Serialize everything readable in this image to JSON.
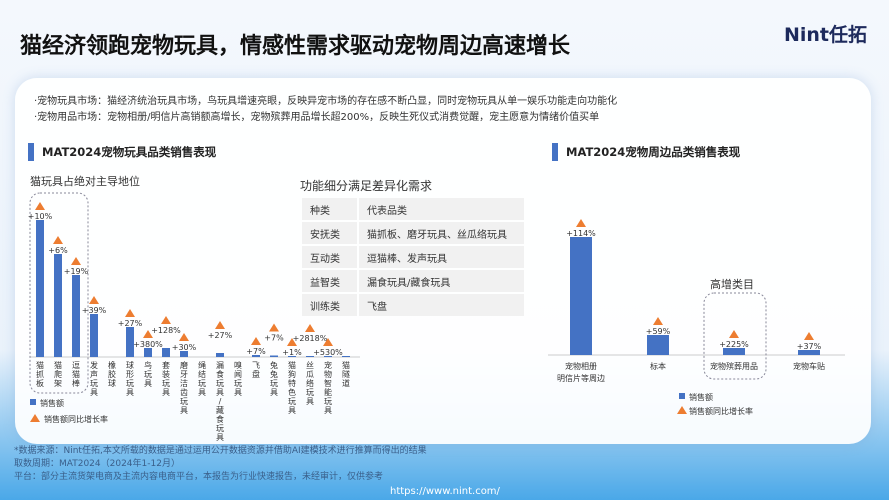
{
  "header": {
    "title": "猫经济领跑宠物玩具，情感性需求驱动宠物周边高速增长",
    "logo": "Nint任拓"
  },
  "bullets": [
    "·宠物玩具市场：猫经济统治玩具市场，鸟玩具增速亮眼，反映异宠市场的存在感不断凸显，同时宠物玩具从单一娱乐功能走向功能化",
    "·宠物用品市场：宠物相册/明信片高销额高增长，宠物殡葬用品增长超200%，反映生死仪式消费觉醒，宠主愿意为情绪价值买单"
  ],
  "left_section": {
    "title": "MAT2024宠物玩具品类销售表现",
    "subtitle": "猫玩具占绝对主导地位"
  },
  "right_section": {
    "title": "MAT2024宠物周边品类销售表现",
    "highlight": "高增类目"
  },
  "table": {
    "title": "功能细分满足差异化需求",
    "header": [
      "种类",
      "代表品类"
    ],
    "rows": [
      [
        "安抚类",
        "猫抓板、磨牙玩具、丝瓜络玩具"
      ],
      [
        "互动类",
        "逗猫棒、发声玩具"
      ],
      [
        "益智类",
        "漏食玩具/藏食玩具"
      ],
      [
        "训练类",
        "飞盘"
      ]
    ]
  },
  "chart_data": [
    {
      "type": "bar",
      "title": "MAT2024宠物玩具品类销售表现",
      "categories": [
        "猫抓板",
        "猫爬架",
        "逗猫棒",
        "发声玩具",
        "橡胶球",
        "球形玩具",
        "鸟玩具",
        "套装玩具",
        "磨牙洁齿玩具",
        "绳结玩具",
        "漏食玩具/藏食玩具",
        "嗅闻玩具",
        "飞盘",
        "兔兔玩具",
        "猫狗特色玩具",
        "丝瓜络玩具",
        "宠物智能玩具",
        "猫隧道"
      ],
      "series": [
        {
          "name": "销售额",
          "values": [
            137,
            103,
            82,
            43,
            0,
            30,
            9,
            9,
            6,
            0,
            4,
            0,
            2,
            1.5,
            1,
            1,
            1,
            1
          ]
        },
        {
          "name": "销售额同比增长率",
          "labels": [
            "+10%",
            "+6%",
            "+19%",
            "+39%",
            "",
            "+27%",
            "+380%",
            "+128%",
            "+30%",
            "",
            "+27%",
            "",
            "+7%",
            "+7%",
            "+1%",
            "+2818%",
            "+530%",
            ""
          ]
        }
      ],
      "legend": "bottom-left"
    },
    {
      "type": "bar",
      "title": "MAT2024宠物周边品类销售表现",
      "categories": [
        "宠物相册\n明信片等周边",
        "标本",
        "宠物殡葬用品",
        "宠物车贴"
      ],
      "series": [
        {
          "name": "销售额",
          "values": [
            118,
            20,
            7,
            5
          ]
        },
        {
          "name": "销售额同比增长率",
          "labels": [
            "+114%",
            "+59%",
            "+225%",
            "+37%"
          ]
        }
      ],
      "legend": "bottom"
    }
  ],
  "colors": {
    "bar": "#4472c4",
    "marker": "#ed7d31"
  },
  "footer": {
    "source": "*数据来源：Nint任拓,本文所载的数据是通过运用公开数据资源并借助AI建模技术进行推算而得出的结果",
    "period": "取数周期：MAT2024（2024年1-12月）",
    "platform": "平台：部分主流货架电商及主流内容电商平台，本报告为行业快速报告，未经审计，仅供参考",
    "url": "https://www.nint.com/"
  }
}
